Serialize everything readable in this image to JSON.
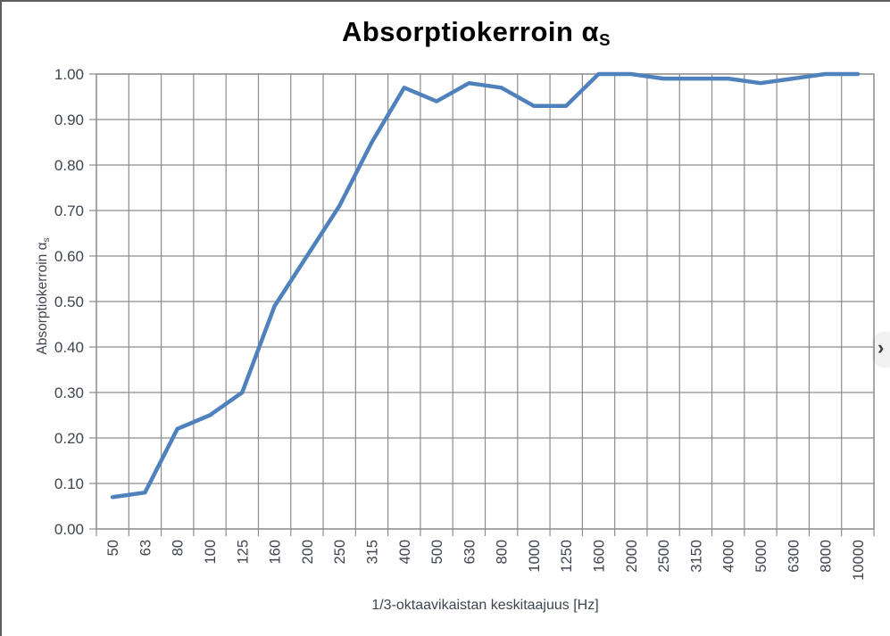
{
  "page": {
    "next_button": {
      "glyph": "›"
    }
  },
  "chart_data": {
    "type": "line",
    "title": {
      "text": "Absorptiokerroin α",
      "subscript": "S"
    },
    "ylabel": {
      "text": "Absorptiokerroin α",
      "subscript": "s"
    },
    "xlabel": "1/3-oktaavikaistan keskitaajuus [Hz]",
    "categories": [
      "50",
      "63",
      "80",
      "100",
      "125",
      "160",
      "200",
      "250",
      "315",
      "400",
      "500",
      "630",
      "800",
      "1000",
      "1250",
      "1600",
      "2000",
      "2500",
      "3150",
      "4000",
      "5000",
      "6300",
      "8000",
      "10000"
    ],
    "series": [
      {
        "name": "Absorptiokerroin",
        "values": [
          0.07,
          0.08,
          0.22,
          0.25,
          0.3,
          0.49,
          0.6,
          0.71,
          0.85,
          0.97,
          0.94,
          0.98,
          0.97,
          0.93,
          0.93,
          1.0,
          1.0,
          0.99,
          0.99,
          0.99,
          0.98,
          0.99,
          1.0,
          1.0
        ]
      }
    ],
    "ylim": [
      0.0,
      1.0
    ],
    "ytick_step": 0.1,
    "y_tick_labels": [
      "0.00",
      "0.10",
      "0.20",
      "0.30",
      "0.40",
      "0.50",
      "0.60",
      "0.70",
      "0.80",
      "0.90",
      "1.00"
    ],
    "grid": "on",
    "legend": "none",
    "colors": {
      "line": "#4F81BD",
      "grid": "#8c8c8c",
      "axis": "#8c8c8c",
      "tick_label": "#3f4450",
      "title": "#000000",
      "background": "#ffffff"
    }
  }
}
